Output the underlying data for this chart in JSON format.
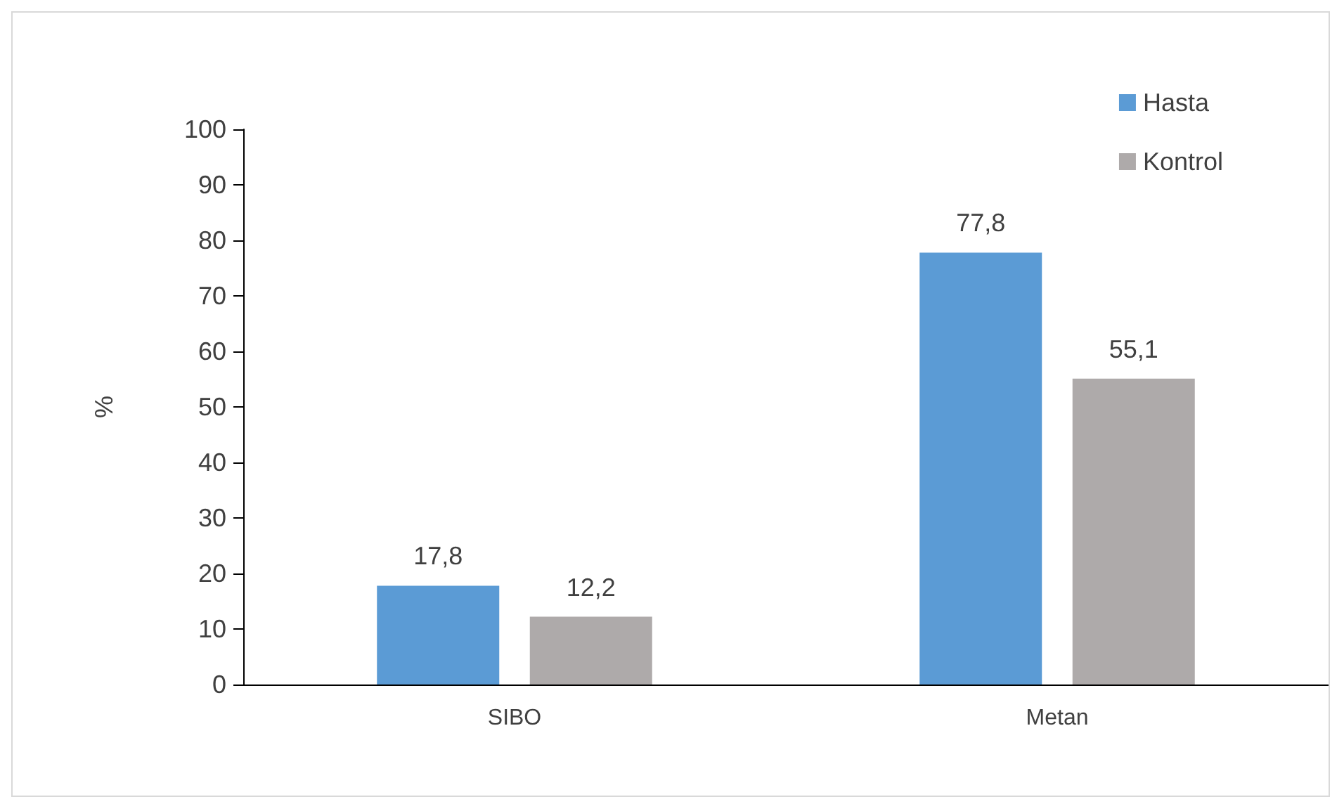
{
  "chart_data": {
    "type": "bar",
    "ylabel": "%",
    "categories": [
      "SIBO",
      "Metan"
    ],
    "series": [
      {
        "name": "Hasta",
        "color": "#5b9bd5",
        "values": [
          17.8,
          77.8
        ],
        "value_labels": [
          "17,8",
          "77,8"
        ]
      },
      {
        "name": "Kontrol",
        "color": "#aeaaaa",
        "values": [
          12.2,
          55.1
        ],
        "value_labels": [
          "12,2",
          "55,1"
        ]
      }
    ],
    "ylim": [
      0,
      100
    ],
    "yticks": [
      0,
      10,
      20,
      30,
      40,
      50,
      60,
      70,
      80,
      90,
      100
    ],
    "grid": false,
    "legend": "top right"
  }
}
